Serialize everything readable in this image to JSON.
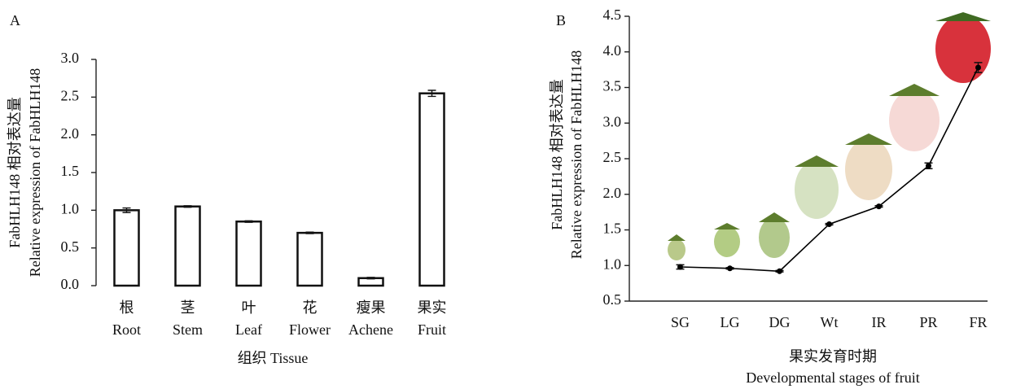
{
  "chart_data": [
    {
      "type": "bar",
      "panel": "A",
      "ylabel": [
        "FabHLH148 相对表达量",
        "Relative expression of FabHLH148"
      ],
      "xlabel": [
        "组织 Tissue"
      ],
      "categories": [
        [
          "根",
          "Root"
        ],
        [
          "茎",
          "Stem"
        ],
        [
          "叶",
          "Leaf"
        ],
        [
          "花",
          "Flower"
        ],
        [
          "瘦果",
          "Achene"
        ],
        [
          "果实",
          "Fruit"
        ]
      ],
      "values": [
        1.0,
        1.05,
        0.85,
        0.7,
        0.1,
        2.55
      ],
      "errors": [
        0.03,
        0.01,
        0.01,
        0.01,
        0.01,
        0.04
      ],
      "color": "#ffffff",
      "ylim": [
        0,
        3
      ],
      "yticks": [
        {
          "value": 0,
          "label": "0.0"
        },
        0.5,
        {
          "value": 1,
          "label": "1.0"
        },
        1.5,
        {
          "value": 2,
          "label": "2.0"
        },
        2.5,
        {
          "value": 3,
          "label": "3.0"
        }
      ]
    },
    {
      "type": "line",
      "panel": "B",
      "ylabel": [
        "FabHLH148 相对表达量",
        "Relative expression of FabHLH148"
      ],
      "xlabel": [
        "果实发育时期",
        "Developmental stages of fruit"
      ],
      "categories": [
        [
          "SG"
        ],
        [
          "LG"
        ],
        [
          "DG"
        ],
        [
          "Wt"
        ],
        [
          "IR"
        ],
        [
          "PR"
        ],
        [
          "FR"
        ]
      ],
      "values": [
        0.98,
        0.96,
        0.92,
        1.58,
        1.83,
        2.4,
        3.78
      ],
      "errors": [
        0.03,
        0.01,
        0.01,
        0.01,
        0.01,
        0.04,
        0.07
      ],
      "color": "#000000",
      "ylim": [
        0.5,
        4.5
      ],
      "yticks": [
        0.5,
        {
          "value": 1,
          "label": "1.0"
        },
        1.5,
        {
          "value": 2,
          "label": "2.0"
        },
        2.5,
        {
          "value": 3,
          "label": "3.0"
        },
        3.5,
        {
          "value": 4,
          "label": "4.0"
        },
        4.5
      ]
    }
  ]
}
